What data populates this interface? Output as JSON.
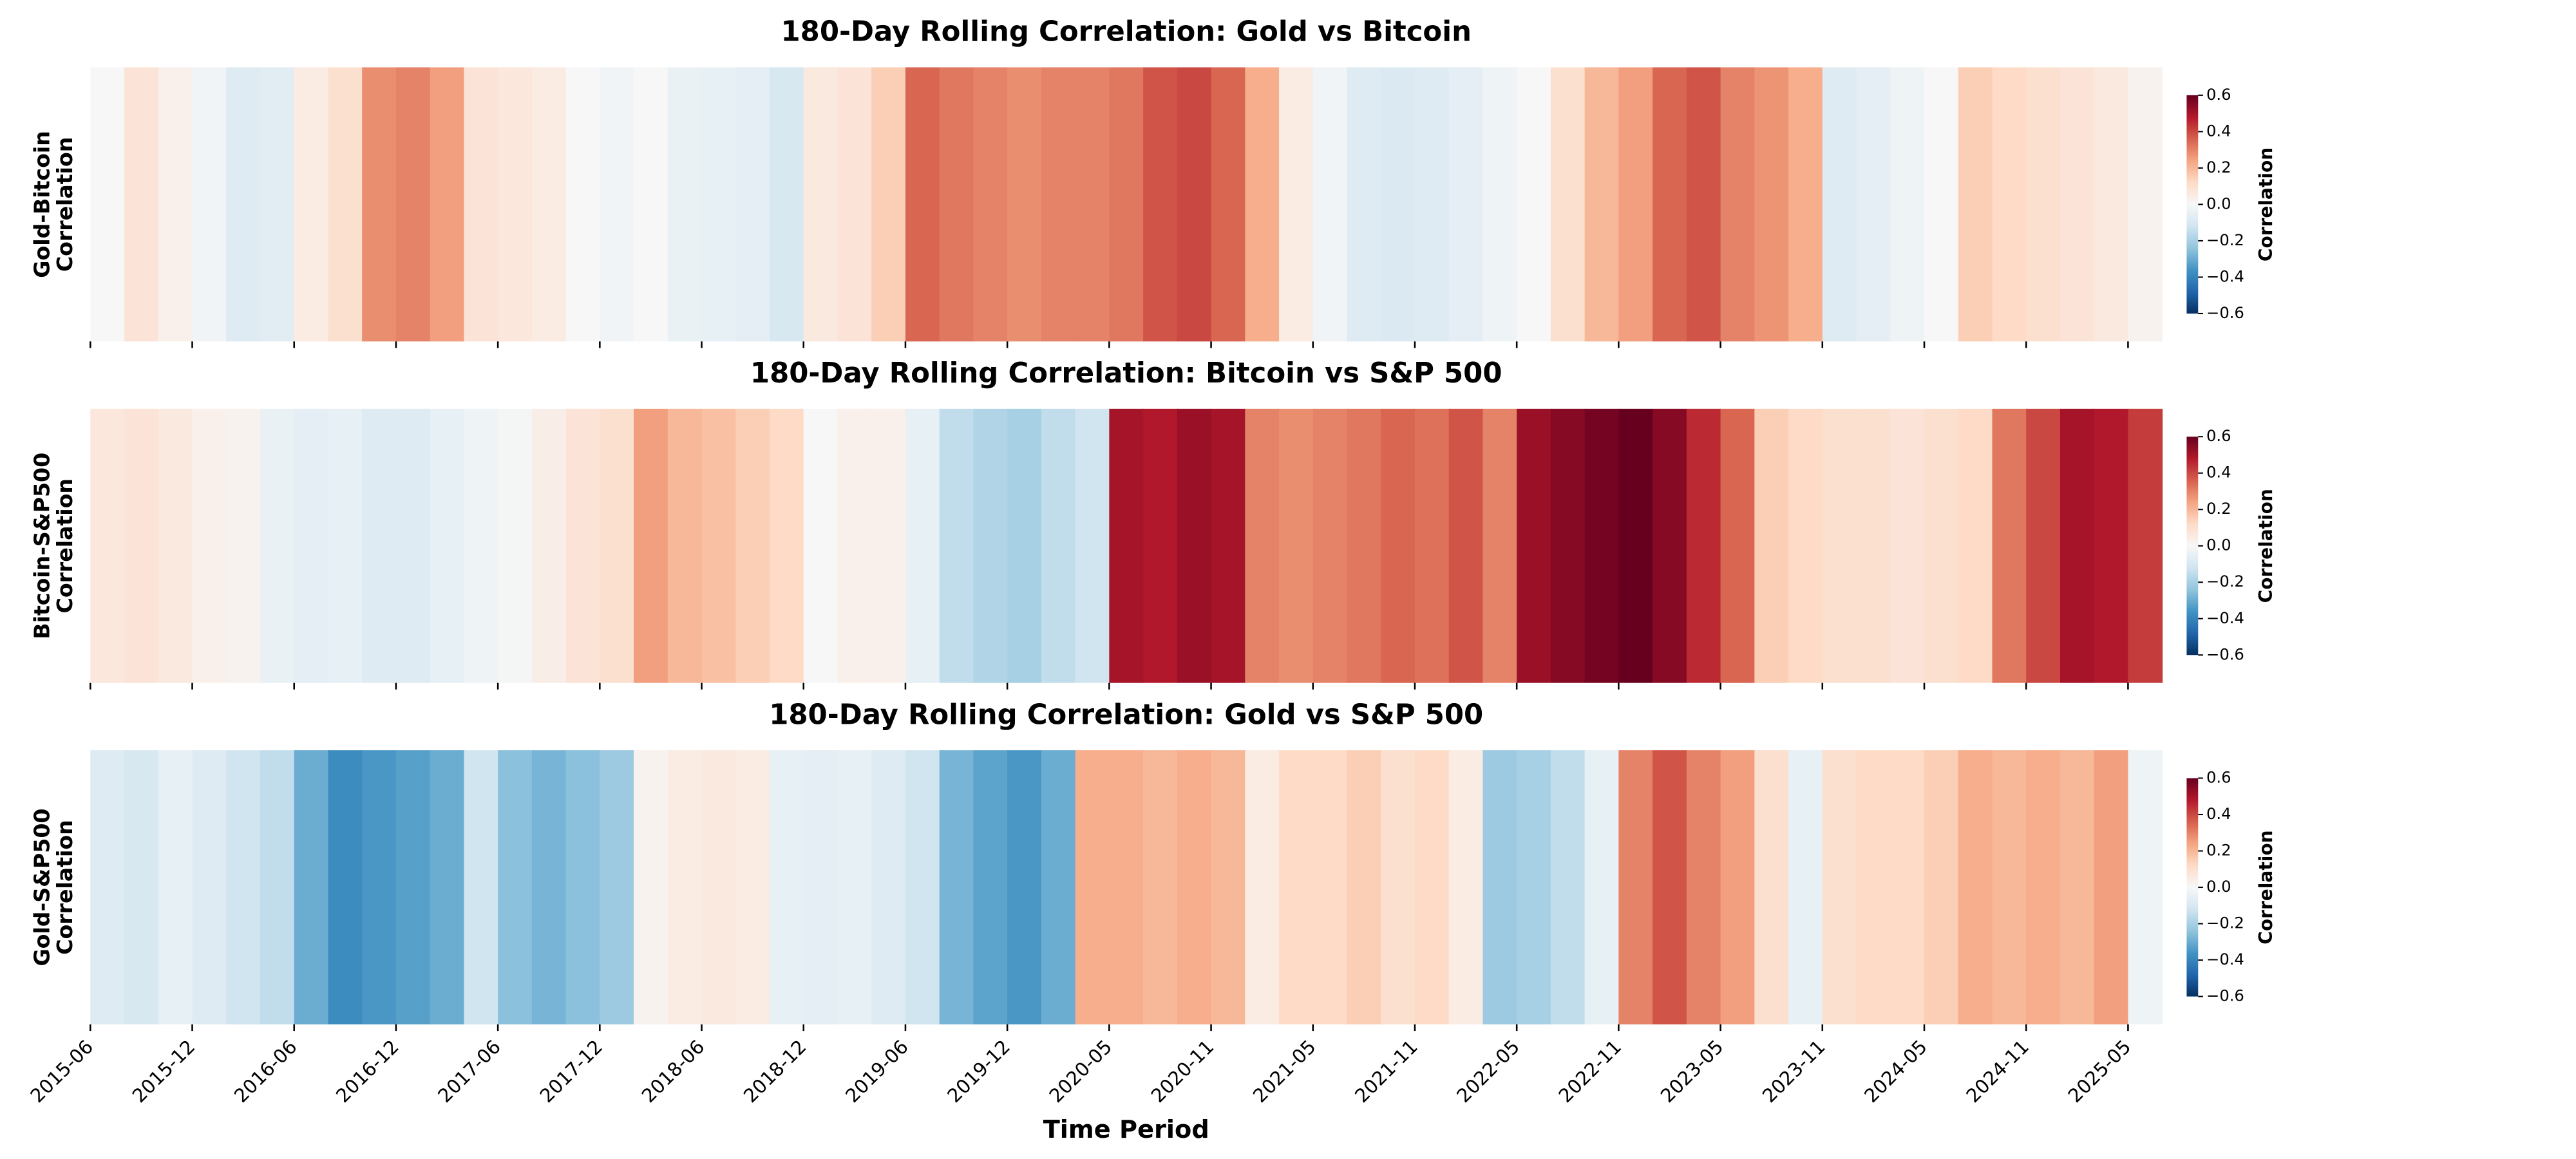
{
  "chart_data": [
    {
      "type": "heatmap",
      "title": "180-Day Rolling Correlation: Gold vs Bitcoin",
      "ylabel": [
        "Gold-Bitcoin",
        "Correlation"
      ],
      "values": [
        0.0,
        0.08,
        0.03,
        -0.02,
        -0.08,
        -0.07,
        0.05,
        0.1,
        0.28,
        0.3,
        0.25,
        0.08,
        0.07,
        0.05,
        0.0,
        -0.02,
        0.0,
        -0.04,
        -0.05,
        -0.06,
        -0.1,
        0.06,
        0.08,
        0.15,
        0.35,
        0.32,
        0.3,
        0.28,
        0.3,
        0.3,
        0.32,
        0.38,
        0.4,
        0.35,
        0.22,
        0.05,
        -0.02,
        -0.08,
        -0.09,
        -0.08,
        -0.06,
        -0.03,
        0.0,
        0.1,
        0.2,
        0.25,
        0.35,
        0.38,
        0.3,
        0.27,
        0.22,
        -0.08,
        -0.06,
        -0.03,
        0.0,
        0.15,
        0.12,
        0.1,
        0.08,
        0.06,
        0.02
      ],
      "xlim": [
        0,
        61
      ],
      "xticks": [
        0,
        3,
        6,
        9,
        12,
        15,
        18,
        21,
        24,
        27,
        30,
        33,
        36,
        39,
        42,
        45,
        48,
        51,
        54,
        57,
        60
      ],
      "clim": [
        -0.6,
        0.6
      ],
      "cticks": [
        0.6,
        0.4,
        0.2,
        {
          "value": 0,
          "label": "0.0"
        },
        {
          "value": -0.2,
          "label": "−0.2"
        },
        {
          "value": -0.4,
          "label": "−0.4"
        },
        {
          "value": -0.6,
          "label": "−0.6"
        }
      ],
      "colorbar_label": "Correlation",
      "colormap": "RdBu_r"
    },
    {
      "type": "heatmap",
      "title": "180-Day Rolling Correlation: Bitcoin vs S&P 500",
      "ylabel": [
        "Bitcoin-S&P500",
        "Correlation"
      ],
      "values": [
        0.07,
        0.08,
        0.06,
        0.03,
        0.02,
        -0.04,
        -0.06,
        -0.05,
        -0.08,
        -0.08,
        -0.05,
        -0.03,
        -0.01,
        0.04,
        0.08,
        0.1,
        0.25,
        0.2,
        0.18,
        0.15,
        0.12,
        0.0,
        0.03,
        0.03,
        -0.05,
        -0.15,
        -0.18,
        -0.2,
        -0.15,
        -0.12,
        0.5,
        0.48,
        0.52,
        0.5,
        0.3,
        0.28,
        0.3,
        0.32,
        0.35,
        0.33,
        0.38,
        0.3,
        0.52,
        0.55,
        0.58,
        0.6,
        0.55,
        0.45,
        0.35,
        0.15,
        0.12,
        0.1,
        0.1,
        0.08,
        0.1,
        0.12,
        0.32,
        0.4,
        0.5,
        0.48,
        0.42
      ],
      "xlim": [
        0,
        61
      ],
      "xticks": [
        0,
        3,
        6,
        9,
        12,
        15,
        18,
        21,
        24,
        27,
        30,
        33,
        36,
        39,
        42,
        45,
        48,
        51,
        54,
        57,
        60
      ],
      "clim": [
        -0.6,
        0.6
      ],
      "cticks": [
        0.6,
        0.4,
        0.2,
        {
          "value": 0,
          "label": "0.0"
        },
        {
          "value": -0.2,
          "label": "−0.2"
        },
        {
          "value": -0.4,
          "label": "−0.4"
        },
        {
          "value": -0.6,
          "label": "−0.6"
        }
      ],
      "colorbar_label": "Correlation",
      "colormap": "RdBu_r"
    },
    {
      "type": "heatmap",
      "title": "180-Day Rolling Correlation: Gold vs S&P 500",
      "ylabel": [
        "Gold-S&P500",
        "Correlation"
      ],
      "xlabel": "Time Period",
      "values": [
        -0.08,
        -0.1,
        -0.05,
        -0.08,
        -0.12,
        -0.15,
        -0.3,
        -0.38,
        -0.35,
        -0.33,
        -0.3,
        -0.12,
        -0.25,
        -0.28,
        -0.25,
        -0.22,
        0.02,
        0.05,
        0.06,
        0.05,
        -0.05,
        -0.06,
        -0.05,
        -0.08,
        -0.12,
        -0.28,
        -0.32,
        -0.35,
        -0.3,
        0.22,
        0.22,
        0.2,
        0.22,
        0.2,
        0.05,
        0.12,
        0.12,
        0.15,
        0.1,
        0.12,
        0.05,
        -0.22,
        -0.2,
        -0.15,
        -0.05,
        0.3,
        0.38,
        0.3,
        0.25,
        0.1,
        -0.05,
        0.1,
        0.12,
        0.12,
        0.15,
        0.22,
        0.2,
        0.22,
        0.2,
        0.25,
        -0.03
      ],
      "xlim": [
        0,
        61
      ],
      "xticks": [
        {
          "value": 0,
          "label": "2015-06"
        },
        {
          "value": 3,
          "label": "2015-12"
        },
        {
          "value": 6,
          "label": "2016-06"
        },
        {
          "value": 9,
          "label": "2016-12"
        },
        {
          "value": 12,
          "label": "2017-06"
        },
        {
          "value": 15,
          "label": "2017-12"
        },
        {
          "value": 18,
          "label": "2018-06"
        },
        {
          "value": 21,
          "label": "2018-12"
        },
        {
          "value": 24,
          "label": "2019-06"
        },
        {
          "value": 27,
          "label": "2019-12"
        },
        {
          "value": 30,
          "label": "2020-05"
        },
        {
          "value": 33,
          "label": "2020-11"
        },
        {
          "value": 36,
          "label": "2021-05"
        },
        {
          "value": 39,
          "label": "2021-11"
        },
        {
          "value": 42,
          "label": "2022-05"
        },
        {
          "value": 45,
          "label": "2022-11"
        },
        {
          "value": 48,
          "label": "2023-05"
        },
        {
          "value": 51,
          "label": "2023-11"
        },
        {
          "value": 54,
          "label": "2024-05"
        },
        {
          "value": 57,
          "label": "2024-11"
        },
        {
          "value": 60,
          "label": "2025-05"
        }
      ],
      "clim": [
        -0.6,
        0.6
      ],
      "cticks": [
        0.6,
        0.4,
        0.2,
        {
          "value": 0,
          "label": "0.0"
        },
        {
          "value": -0.2,
          "label": "−0.2"
        },
        {
          "value": -0.4,
          "label": "−0.4"
        },
        {
          "value": -0.6,
          "label": "−0.6"
        }
      ],
      "colorbar_label": "Correlation",
      "colormap": "RdBu_r"
    }
  ]
}
